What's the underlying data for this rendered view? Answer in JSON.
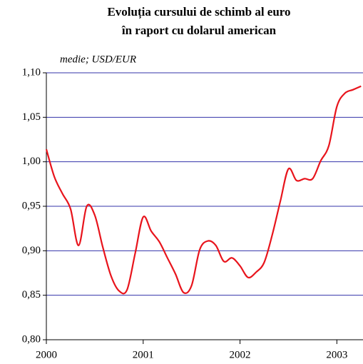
{
  "chart_data": {
    "type": "line",
    "title": [
      "Evoluția cursului de schimb al euro",
      "în raport cu dolarul american"
    ],
    "subtitle": "medie; USD/EUR",
    "x": [
      2000,
      2000.083,
      2000.167,
      2000.25,
      2000.333,
      2000.417,
      2000.5,
      2000.583,
      2000.667,
      2000.75,
      2000.833,
      2000.917,
      2001,
      2001.083,
      2001.167,
      2001.25,
      2001.333,
      2001.417,
      2001.5,
      2001.583,
      2001.667,
      2001.75,
      2001.833,
      2001.917,
      2002,
      2002.083,
      2002.167,
      2002.25,
      2002.333,
      2002.417,
      2002.5,
      2002.583,
      2002.667,
      2002.75,
      2002.833,
      2002.917,
      2003,
      2003.083,
      2003.167,
      2003.25
    ],
    "series": [
      {
        "name": "USD/EUR",
        "color": "#e8141c",
        "values": [
          1.014,
          0.983,
          0.964,
          0.947,
          0.906,
          0.95,
          0.94,
          0.904,
          0.872,
          0.855,
          0.856,
          0.897,
          0.938,
          0.922,
          0.91,
          0.892,
          0.874,
          0.853,
          0.861,
          0.901,
          0.911,
          0.906,
          0.888,
          0.892,
          0.883,
          0.87,
          0.876,
          0.887,
          0.918,
          0.956,
          0.992,
          0.979,
          0.981,
          0.981,
          1.001,
          1.018,
          1.062,
          1.077,
          1.081,
          1.085
        ]
      }
    ],
    "xlim": [
      2000,
      2003.27
    ],
    "xticks": [
      2000,
      2001,
      2002,
      2003
    ],
    "ylim": [
      0.8,
      1.1
    ],
    "yticks": [
      {
        "value": 0.8,
        "label": "0,80"
      },
      {
        "value": 0.85,
        "label": "0,85"
      },
      {
        "value": 0.9,
        "label": "0,90"
      },
      {
        "value": 0.95,
        "label": "0,95"
      },
      {
        "value": 1.0,
        "label": "1,00"
      },
      {
        "value": 1.05,
        "label": "1,05"
      },
      {
        "value": 1.1,
        "label": "1,10"
      }
    ],
    "grid": true,
    "grid_color": "#3333aa"
  }
}
